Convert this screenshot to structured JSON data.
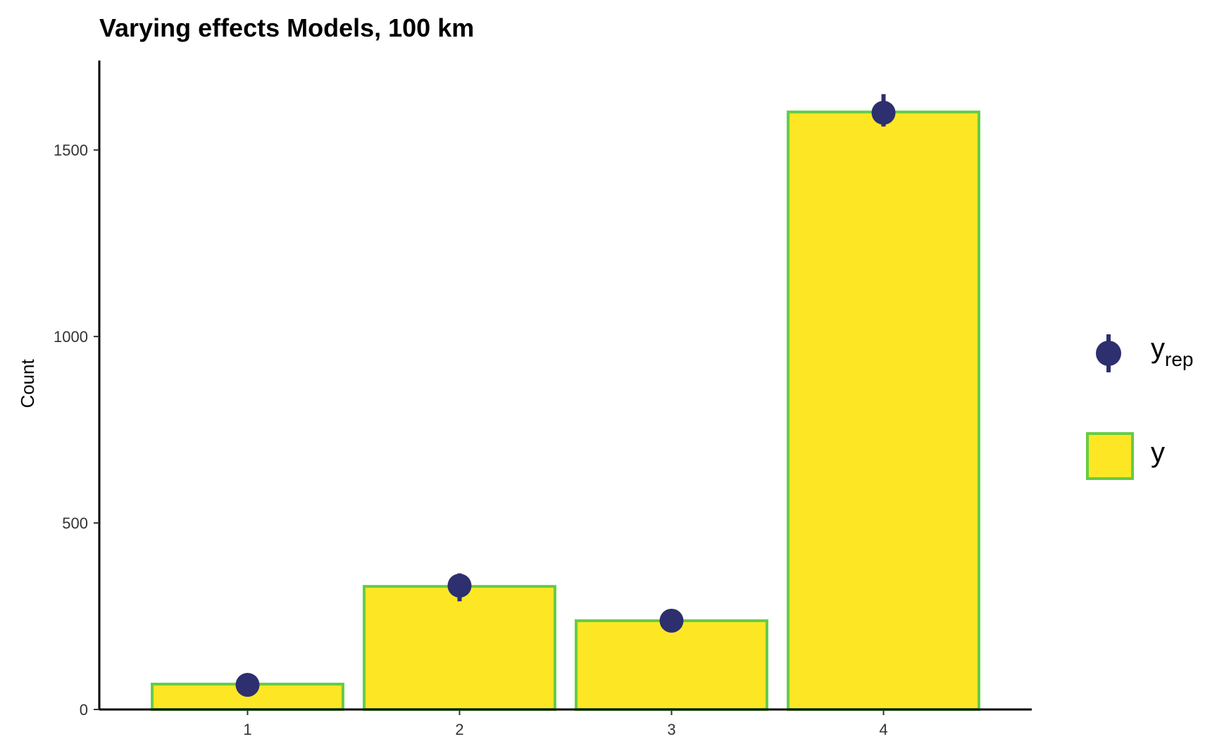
{
  "chart_data": {
    "type": "bar",
    "title": "Varying effects Models, 100 km",
    "xlabel": "",
    "ylabel": "Count",
    "categories": [
      "1",
      "2",
      "3",
      "4"
    ],
    "x_ticks": [
      "1",
      "2",
      "3",
      "4"
    ],
    "y_ticks": [
      "0",
      "500",
      "1000",
      "1500"
    ],
    "ylim": [
      0,
      1740
    ],
    "grid": false,
    "legend_position": "right",
    "series": [
      {
        "name": "y",
        "kind": "bar",
        "values": [
          68,
          330,
          238,
          1602
        ]
      },
      {
        "name": "y_rep",
        "kind": "pointrange",
        "values": [
          66,
          332,
          238,
          1600
        ],
        "lower": [
          58,
          290,
          228,
          1563
        ],
        "upper": [
          75,
          365,
          248,
          1650
        ]
      }
    ],
    "legend": {
      "yrep_main": "y",
      "yrep_sub": "rep",
      "y_label": "y"
    },
    "colors": {
      "bar_fill": "#FDE725",
      "bar_stroke": "#66CC44",
      "point": "#2D2F6E",
      "axis": "#000000"
    }
  }
}
